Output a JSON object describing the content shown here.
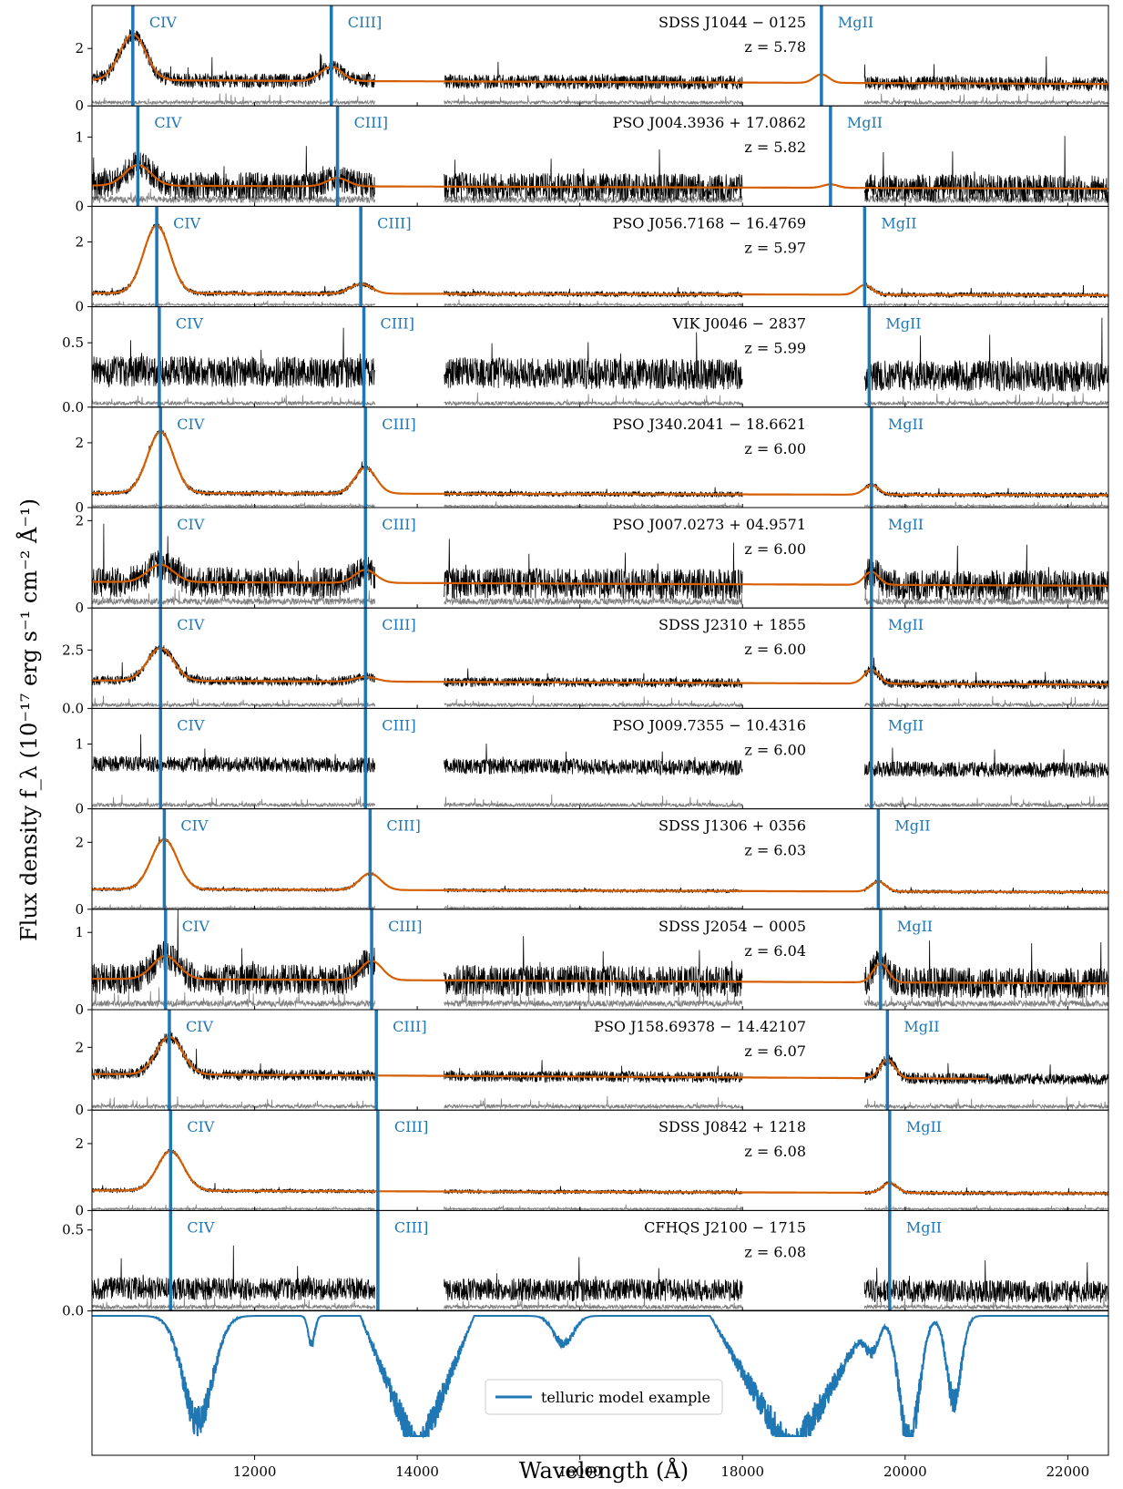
{
  "chart_data": {
    "type": "line",
    "xlabel": "Wavelength (Å)",
    "ylabel": "Flux density f_λ (10⁻¹⁷ erg s⁻¹ cm⁻² Å⁻¹)",
    "xlim": [
      10000,
      22500
    ],
    "xticks": [
      12000,
      14000,
      16000,
      18000,
      20000,
      22000
    ],
    "xtick_labels": [
      "12000",
      "14000",
      "16000",
      "18000",
      "20000",
      "22000"
    ],
    "spectrum_segments": [
      [
        10000,
        13480
      ],
      [
        14330,
        18000
      ],
      [
        19500,
        22500
      ]
    ],
    "line_labels": [
      "CIV",
      "CIII]",
      "MgII"
    ],
    "rest_wavelengths": [
      1549,
      1909,
      2798
    ],
    "colors": {
      "spectrum": "#000000",
      "error": "#808080",
      "model": "#d55e00",
      "lines": "#1f77b4",
      "telluric": "#1f77b4"
    },
    "panels": [
      {
        "name": "SDSS J1044 − 0125",
        "z_label": "z = 5.78",
        "z": 5.78,
        "ylim": [
          0,
          3.5
        ],
        "yticks": [
          0,
          2
        ],
        "ytick_labels": [
          "0",
          "2"
        ],
        "continuum": 0.9,
        "civ_amp": 1.6,
        "ciii_amp": 0.5,
        "mgii_amp": 0.3,
        "noise": 0.25,
        "err": 0.12,
        "has_model": true,
        "model_end": 22500
      },
      {
        "name": "PSO J004.3936 + 17.0862",
        "z_label": "z = 5.82",
        "z": 5.82,
        "ylim": [
          0,
          1.45
        ],
        "yticks": [
          0,
          1
        ],
        "ytick_labels": [
          "0",
          "1"
        ],
        "continuum": 0.3,
        "civ_amp": 0.3,
        "ciii_amp": 0.12,
        "mgii_amp": 0.05,
        "noise": 0.2,
        "err": 0.1,
        "has_model": true,
        "model_end": 22500
      },
      {
        "name": "PSO J056.7168 − 16.4769",
        "z_label": "z = 5.97",
        "z": 5.97,
        "ylim": [
          0,
          3.1
        ],
        "yticks": [
          0,
          2
        ],
        "ytick_labels": [
          "0",
          "2"
        ],
        "continuum": 0.42,
        "civ_amp": 2.1,
        "ciii_amp": 0.3,
        "mgii_amp": 0.3,
        "noise": 0.08,
        "err": 0.06,
        "has_model": true,
        "model_end": 22500
      },
      {
        "name": "VIK J0046 − 2837",
        "z_label": "z = 5.99",
        "z": 5.99,
        "ylim": [
          0,
          0.78
        ],
        "yticks": [
          0.0,
          0.5
        ],
        "ytick_labels": [
          "0.0",
          "0.5"
        ],
        "continuum": 0.28,
        "civ_amp": 0.0,
        "ciii_amp": 0.0,
        "mgii_amp": 0.0,
        "noise": 0.12,
        "err": 0.03,
        "has_model": false,
        "model_end": 22500
      },
      {
        "name": "PSO J340.2041 − 18.6621",
        "z_label": "z = 6.00",
        "z": 6.0,
        "ylim": [
          0,
          3.1
        ],
        "yticks": [
          0,
          2
        ],
        "ytick_labels": [
          "0",
          "2"
        ],
        "continuum": 0.45,
        "civ_amp": 1.9,
        "ciii_amp": 0.8,
        "mgii_amp": 0.3,
        "noise": 0.08,
        "err": 0.05,
        "has_model": true,
        "model_end": 22500
      },
      {
        "name": "PSO J007.0273 + 04.9571",
        "z_label": "z = 6.00",
        "z": 6.0,
        "ylim": [
          0,
          2.3
        ],
        "yticks": [
          0,
          2
        ],
        "ytick_labels": [
          "0",
          "2"
        ],
        "continuum": 0.6,
        "civ_amp": 0.4,
        "ciii_amp": 0.3,
        "mgii_amp": 0.3,
        "noise": 0.35,
        "err": 0.15,
        "has_model": true,
        "model_end": 22500
      },
      {
        "name": "SDSS J2310 + 1855",
        "z_label": "z = 6.00",
        "z": 6.0,
        "ylim": [
          0,
          4.3
        ],
        "yticks": [
          0.0,
          2.5
        ],
        "ytick_labels": [
          "0.0",
          "2.5"
        ],
        "continuum": 1.2,
        "civ_amp": 1.4,
        "ciii_amp": 0.2,
        "mgii_amp": 0.6,
        "noise": 0.2,
        "err": 0.15,
        "has_model": true,
        "model_end": 22500
      },
      {
        "name": "PSO J009.7355 − 10.4316",
        "z_label": "z = 6.00",
        "z": 6.0,
        "ylim": [
          0,
          1.55
        ],
        "yticks": [
          0,
          1
        ],
        "ytick_labels": [
          "0",
          "1"
        ],
        "continuum": 0.7,
        "civ_amp": 0.0,
        "ciii_amp": 0.0,
        "mgii_amp": 0.0,
        "noise": 0.12,
        "err": 0.06,
        "has_model": false,
        "model_end": 22500
      },
      {
        "name": "SDSS J1306 + 0356",
        "z_label": "z = 6.03",
        "z": 6.03,
        "ylim": [
          0,
          3.0
        ],
        "yticks": [
          0,
          2
        ],
        "ytick_labels": [
          "0",
          "2"
        ],
        "continuum": 0.6,
        "civ_amp": 1.5,
        "ciii_amp": 0.5,
        "mgii_amp": 0.3,
        "noise": 0.05,
        "err": 0.04,
        "has_model": true,
        "model_end": 22500
      },
      {
        "name": "SDSS J2054 − 0005",
        "z_label": "z = 6.04",
        "z": 6.04,
        "ylim": [
          0,
          1.3
        ],
        "yticks": [
          0,
          1
        ],
        "ytick_labels": [
          "0",
          "1"
        ],
        "continuum": 0.4,
        "civ_amp": 0.3,
        "ciii_amp": 0.25,
        "mgii_amp": 0.25,
        "noise": 0.2,
        "err": 0.08,
        "has_model": true,
        "model_end": 22500
      },
      {
        "name": "PSO J158.69378 − 14.42107",
        "z_label": "z = 6.07",
        "z": 6.07,
        "ylim": [
          0,
          3.2
        ],
        "yticks": [
          0,
          2
        ],
        "ytick_labels": [
          "0",
          "2"
        ],
        "continuum": 1.15,
        "civ_amp": 1.2,
        "ciii_amp": 0.0,
        "mgii_amp": 0.6,
        "noise": 0.18,
        "err": 0.12,
        "has_model": true,
        "model_end": 21000
      },
      {
        "name": "SDSS J0842 + 1218",
        "z_label": "z = 6.08",
        "z": 6.08,
        "ylim": [
          0,
          3.0
        ],
        "yticks": [
          0,
          2
        ],
        "ytick_labels": [
          "0",
          "2"
        ],
        "continuum": 0.6,
        "civ_amp": 1.2,
        "ciii_amp": 0.0,
        "mgii_amp": 0.3,
        "noise": 0.06,
        "err": 0.05,
        "has_model": true,
        "model_end": 22500
      },
      {
        "name": "CFHQS J2100 − 1715",
        "z_label": "z = 6.08",
        "z": 6.08,
        "ylim": [
          0,
          0.62
        ],
        "yticks": [
          0.0,
          0.5
        ],
        "ytick_labels": [
          "0.0",
          "0.5"
        ],
        "continuum": 0.14,
        "civ_amp": 0.0,
        "ciii_amp": 0.0,
        "mgii_amp": 0.0,
        "noise": 0.07,
        "err": 0.025,
        "has_model": false,
        "model_end": 22500
      }
    ],
    "telluric": {
      "legend": "telluric model example"
    }
  }
}
